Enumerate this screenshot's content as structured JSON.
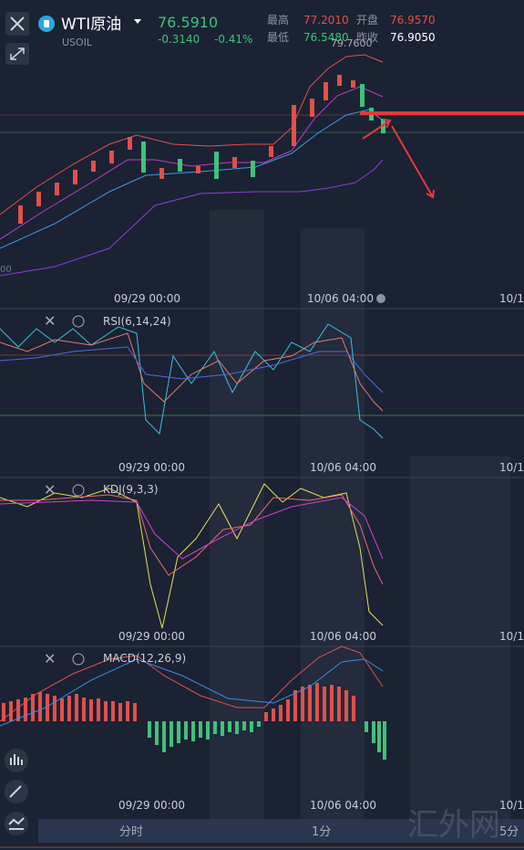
{
  "header": {
    "symbol": "WTI原油",
    "code": "USOIL",
    "price": "76.5910",
    "change": "-0.3140",
    "change_pct": "-0.41%",
    "stats": [
      {
        "label": "最高",
        "value": "77.2010"
      },
      {
        "label": "开盘",
        "value": "76.9570"
      },
      {
        "label": "最低",
        "value": "76.5480"
      },
      {
        "label": "昨收",
        "value": "76.9050"
      }
    ]
  },
  "main_chart": {
    "max_label": "79.7600",
    "left_label": "00",
    "time_labels": [
      "09/29 00:00",
      "10/06 04:00",
      "10/1"
    ]
  },
  "panels": [
    {
      "title": "RSI(6,14,24)",
      "time_labels": [
        "09/29 00:00",
        "10/06 04:00",
        "10/1"
      ]
    },
    {
      "title": "KDJ(9,3,3)",
      "time_labels": [
        "09/29 00:00",
        "10/06 04:00",
        "10/1"
      ]
    },
    {
      "title": "MACD(12,26,9)",
      "time_labels": [
        "09/29 00:00",
        "10/06 04:00",
        "10/1"
      ]
    }
  ],
  "tabs": [
    "分时",
    "1分",
    "5分"
  ],
  "watermark": "汇外网"
}
